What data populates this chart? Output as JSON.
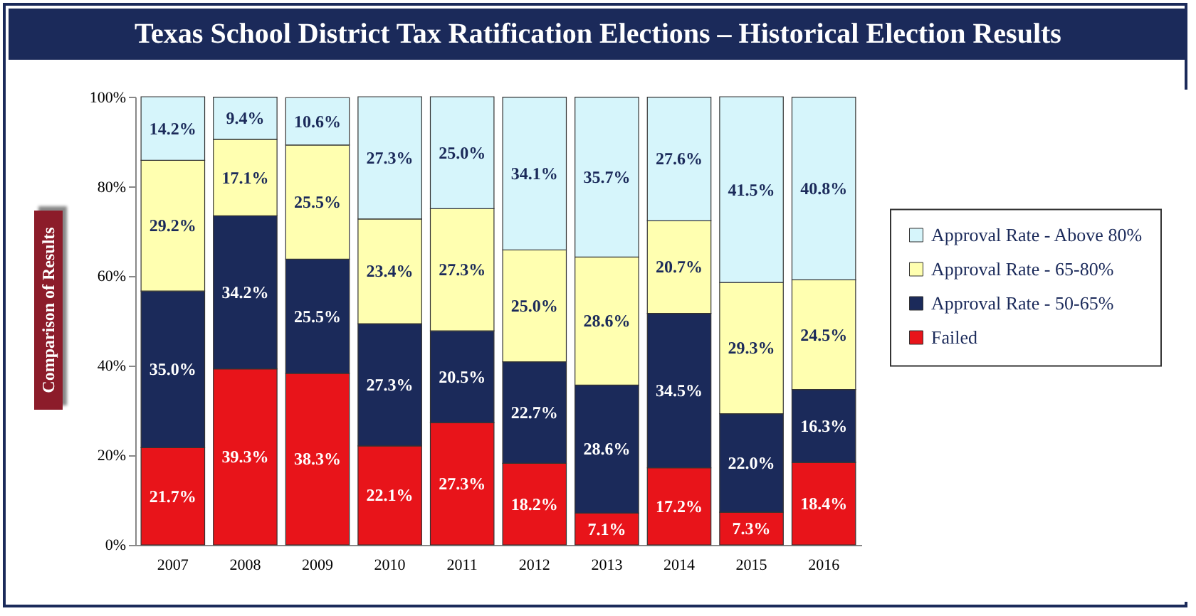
{
  "chart_data": {
    "type": "bar",
    "title": "Texas School District Tax Ratification Elections – Historical Election Results",
    "ylabel": "Comparison of Results",
    "categories": [
      "2007",
      "2008",
      "2009",
      "2010",
      "2011",
      "2012",
      "2013",
      "2014",
      "2015",
      "2016"
    ],
    "stacked": true,
    "legend": "right",
    "grid": false,
    "ylim": [
      0,
      100.1
    ],
    "yticks": [
      {
        "value": 0,
        "label": "0%"
      },
      {
        "value": 20,
        "label": "20%"
      },
      {
        "value": 40,
        "label": "40%"
      },
      {
        "value": 60,
        "label": "60%"
      },
      {
        "value": 80,
        "label": "80%"
      },
      {
        "value": 100,
        "label": "100%"
      }
    ],
    "series": [
      {
        "name": "Failed",
        "color": "#e8141a",
        "values": [
          21.7,
          39.3,
          38.3,
          22.1,
          27.3,
          18.2,
          7.1,
          17.2,
          7.3,
          18.4
        ],
        "value_labels": [
          "21.7%",
          "39.3%",
          "38.3%",
          "22.1%",
          "27.3%",
          "18.2%",
          "7.1%",
          "17.2%",
          "7.3%",
          "18.4%"
        ]
      },
      {
        "name": "Approval Rate - 50-65%",
        "color": "#1b2a5a",
        "values": [
          35.0,
          34.2,
          25.5,
          27.3,
          20.5,
          22.7,
          28.6,
          34.5,
          22.0,
          16.3
        ],
        "value_labels": [
          "35.0%",
          "34.2%",
          "25.5%",
          "27.3%",
          "20.5%",
          "22.7%",
          "28.6%",
          "34.5%",
          "22.0%",
          "16.3%"
        ]
      },
      {
        "name": "Approval Rate - 65-80%",
        "color": "#ffffb0",
        "values": [
          29.2,
          17.1,
          25.5,
          23.4,
          27.3,
          25.0,
          28.6,
          20.7,
          29.3,
          24.5
        ],
        "value_labels": [
          "29.2%",
          "17.1%",
          "25.5%",
          "23.4%",
          "27.3%",
          "25.0%",
          "28.6%",
          "20.7%",
          "29.3%",
          "24.5%"
        ]
      },
      {
        "name": "Approval Rate - Above 80%",
        "color": "#d6f5fb",
        "values": [
          14.2,
          9.4,
          10.6,
          27.3,
          25.0,
          34.1,
          35.7,
          27.6,
          41.5,
          40.8
        ],
        "value_labels": [
          "14.2%",
          "9.4%",
          "10.6%",
          "27.3%",
          "25.0%",
          "34.1%",
          "35.7%",
          "27.6%",
          "41.5%",
          "40.8%"
        ]
      }
    ]
  }
}
